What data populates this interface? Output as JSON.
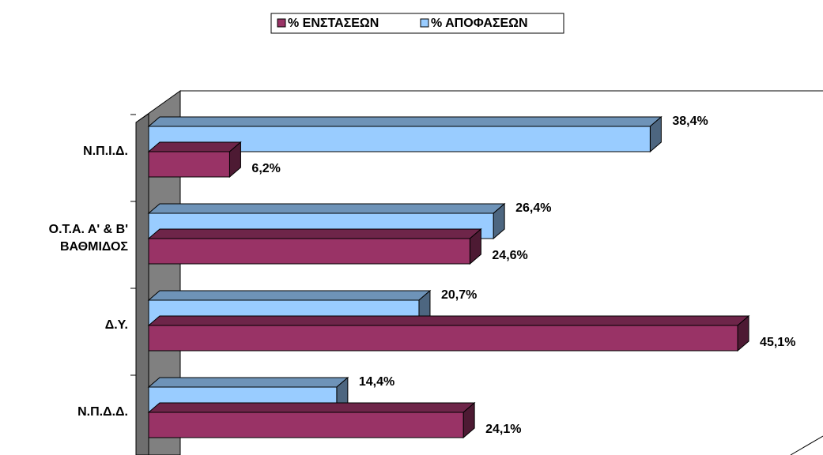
{
  "chart_data": {
    "type": "bar3d",
    "orientation": "horizontal",
    "categories": [
      "Ν.Π.Ι.Δ.",
      "Ο.Τ.Α. Α' & Β' ΒΑΘΜΙΔΟΣ",
      "Δ.Υ.",
      "Ν.Π.Δ.Δ."
    ],
    "series": [
      {
        "name": "% ΕΝΣΤΑΣΕΩΝ",
        "color": "#993366",
        "values": [
          6.2,
          24.6,
          45.1,
          24.1
        ],
        "value_labels": [
          "6,2%",
          "24,6%",
          "45,1%",
          "24,1%"
        ]
      },
      {
        "name": "% ΑΠΟΦΑΣΕΩΝ",
        "color": "#99ccff",
        "values": [
          38.4,
          26.4,
          20.7,
          14.4
        ],
        "value_labels": [
          "38,4%",
          "26,4%",
          "20,7%",
          "14,4%"
        ]
      }
    ],
    "xlim": [
      0,
      50
    ],
    "legend": "top"
  }
}
